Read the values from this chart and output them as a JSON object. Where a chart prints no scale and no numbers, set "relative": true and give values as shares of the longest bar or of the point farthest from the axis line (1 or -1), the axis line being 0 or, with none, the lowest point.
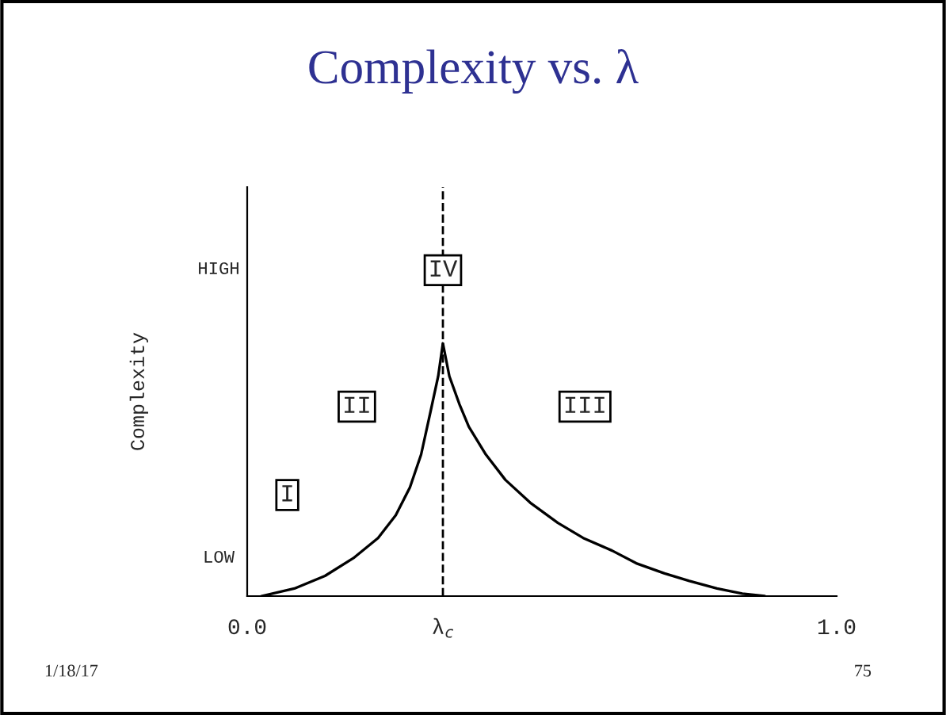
{
  "chart_data": {
    "type": "line",
    "title": "Complexity vs. λ",
    "ylabel": "Complexity",
    "relative": true,
    "x": [
      0.024,
      0.08,
      0.132,
      0.18,
      0.222,
      0.252,
      0.276,
      0.295,
      0.311,
      0.324,
      0.332,
      0.343,
      0.36,
      0.376,
      0.405,
      0.438,
      0.48,
      0.527,
      0.57,
      0.619,
      0.66,
      0.708,
      0.75,
      0.797,
      0.84,
      0.878
    ],
    "series": [
      {
        "color": "#000000",
        "values": [
          0,
          0.03,
          0.08,
          0.15,
          0.23,
          0.32,
          0.43,
          0.56,
          0.73,
          0.87,
          1.0,
          0.87,
          0.76,
          0.67,
          0.56,
          0.46,
          0.37,
          0.29,
          0.23,
          0.18,
          0.13,
          0.09,
          0.06,
          0.03,
          0.01,
          0
        ]
      }
    ],
    "xlim": [
      0,
      1
    ],
    "xticks": [
      {
        "value": 0,
        "label": "0.0"
      },
      {
        "value": 0.332,
        "label": "λ$_{c}$"
      },
      {
        "value": 1,
        "label": "1.0"
      }
    ],
    "tick_labels": "x",
    "grid": false,
    "legend": false,
    "marker": "none",
    "line_style": "solid",
    "ref_lines": [
      {
        "axis": "x",
        "value": 0.332,
        "color": "#000000",
        "line_style": "dashed"
      }
    ],
    "annotations": [
      {
        "text": "I",
        "x": 0.068,
        "y": 0.4
      },
      {
        "text": "II",
        "x": 0.186,
        "y": 0.75
      },
      {
        "text": "III",
        "x": 0.573,
        "y": 0.75
      },
      {
        "text": "IV",
        "x": 0.332,
        "y": 1.29
      },
      "HIGH",
      "LOW",
      "1/18/17",
      "75"
    ]
  }
}
